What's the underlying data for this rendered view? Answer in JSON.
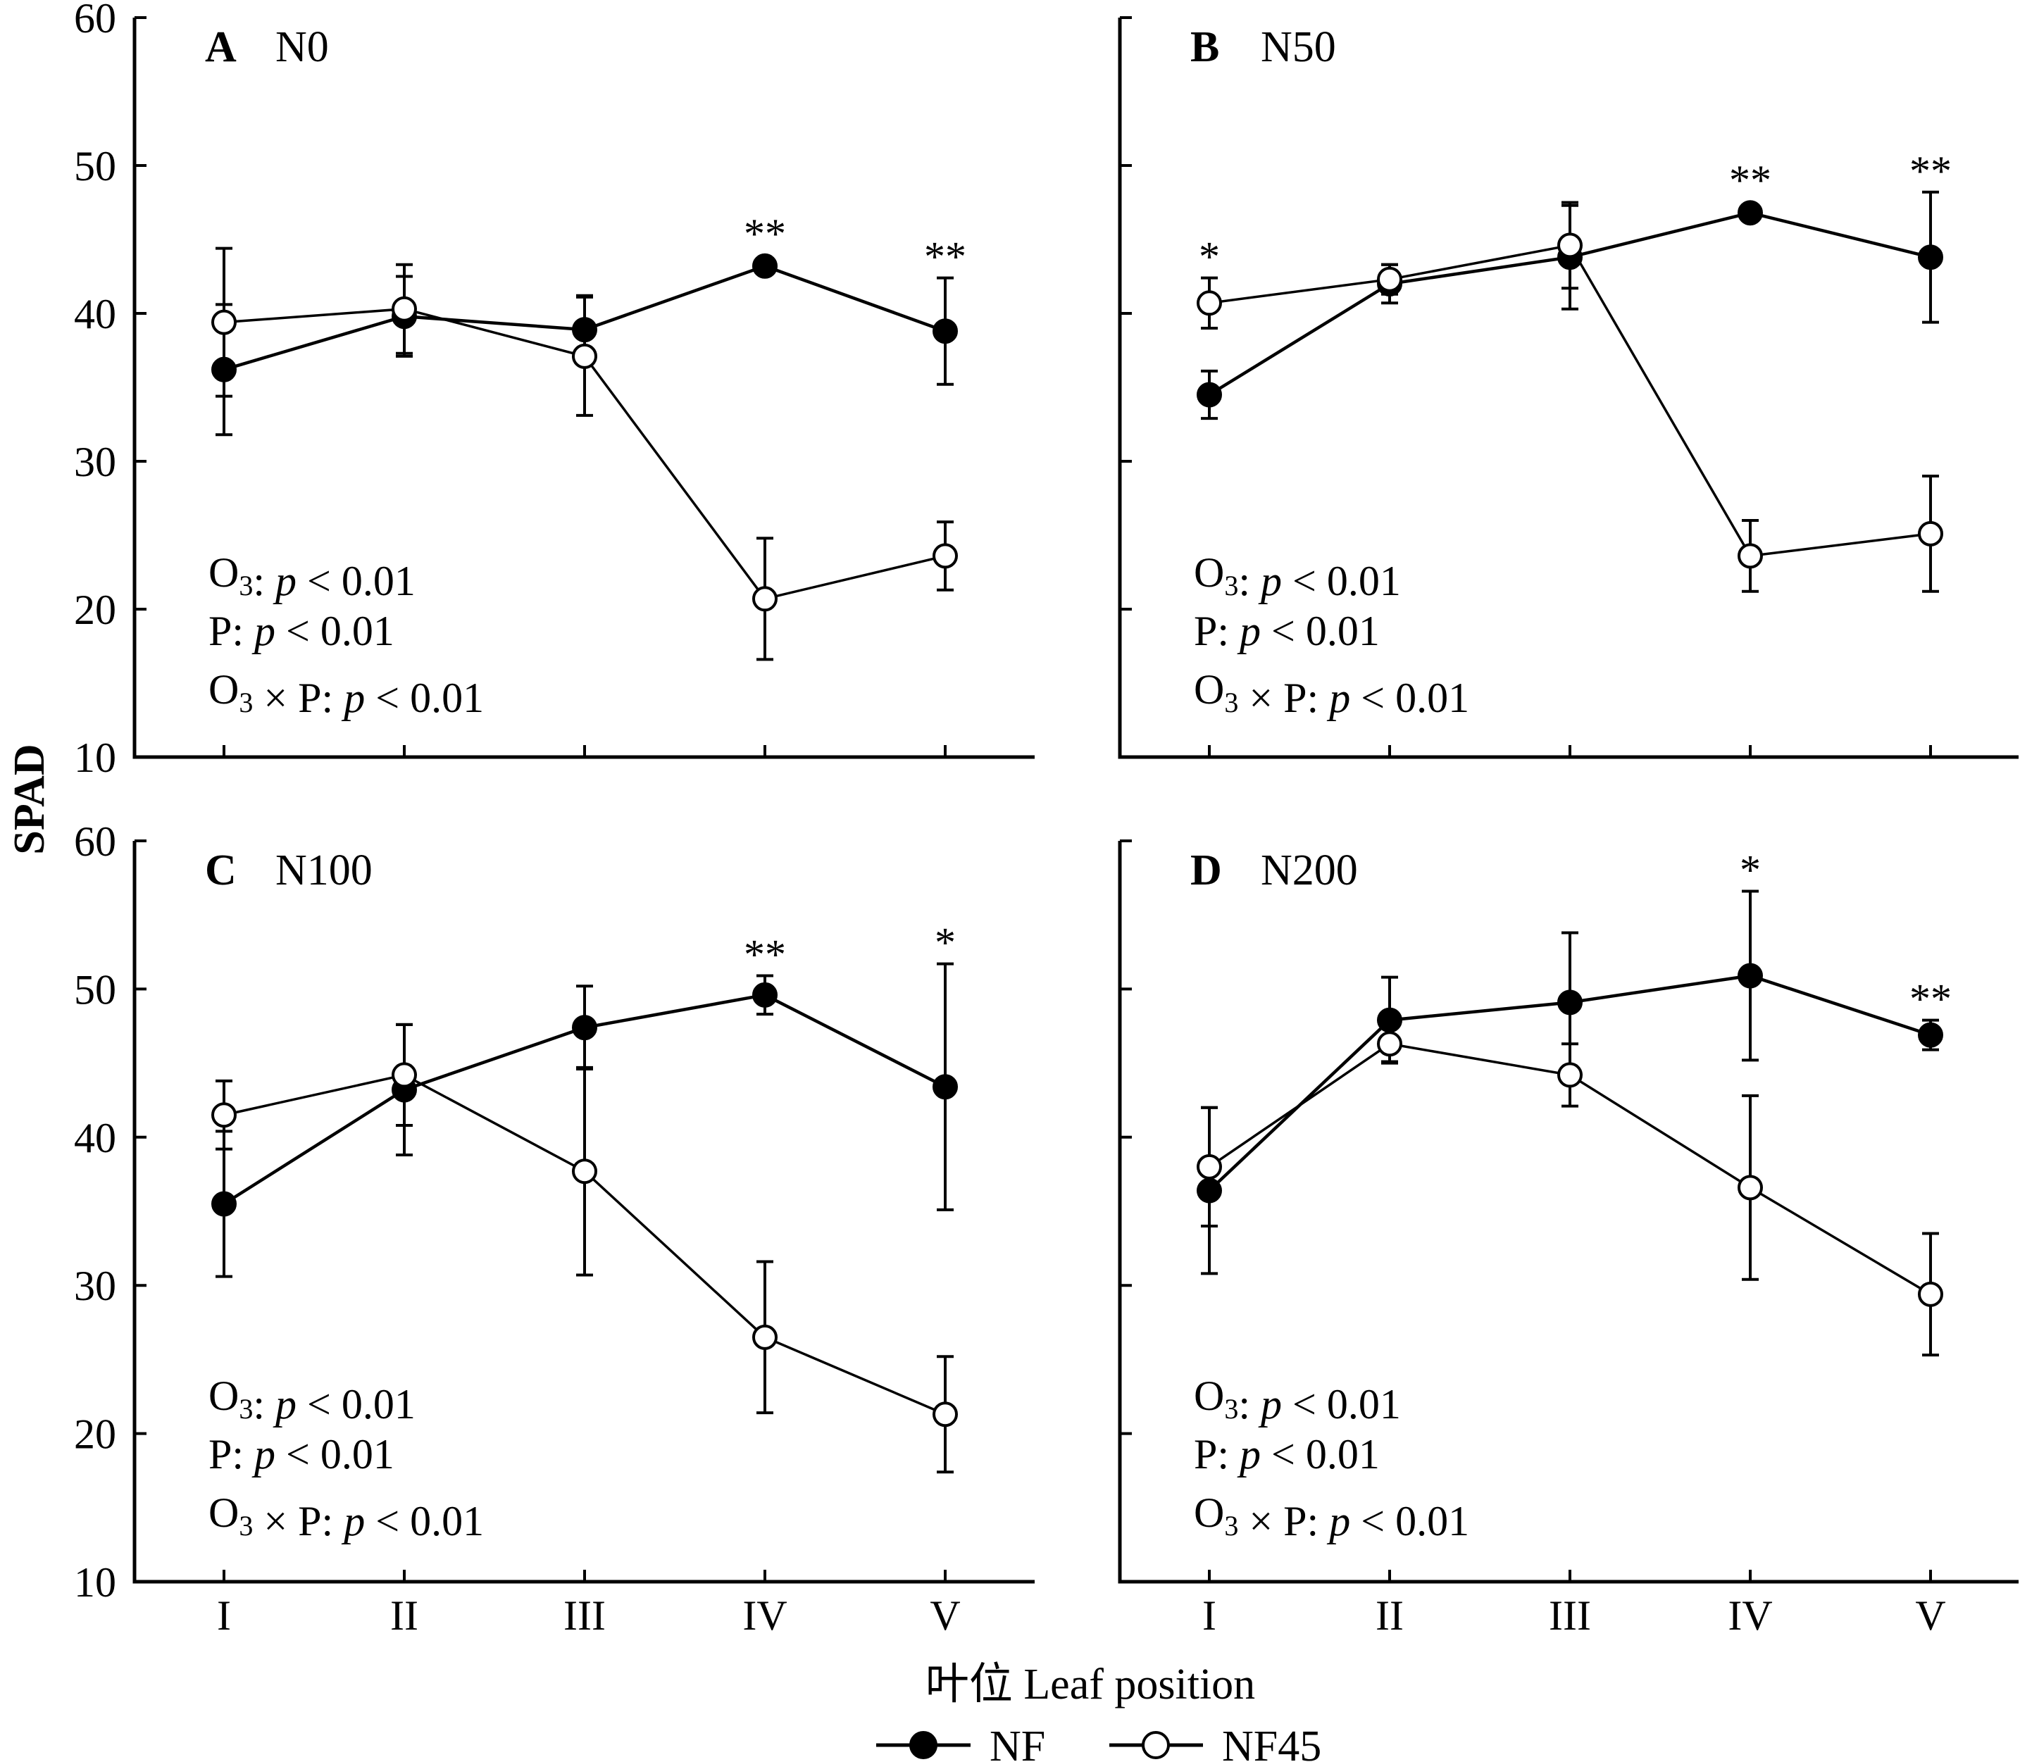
{
  "chart_data": {
    "type": "line",
    "ylabel": "SPAD",
    "xlabel": "叶位 Leaf position",
    "categories": [
      "I",
      "II",
      "III",
      "IV",
      "V"
    ],
    "ylim": [
      10,
      60
    ],
    "yticks": [
      10,
      20,
      30,
      40,
      50,
      60
    ],
    "grid": false,
    "legend": {
      "placement": "bottom-center",
      "entries": [
        {
          "name": "NF",
          "marker": "filled-circle"
        },
        {
          "name": "NF45",
          "marker": "open-circle"
        }
      ]
    },
    "panels": [
      {
        "letter": "A",
        "name": "N0",
        "stats": [
          "O3: p < 0.01",
          "P: p < 0.01",
          "O3 × P: p < 0.01"
        ],
        "series": [
          {
            "name": "NF",
            "values": [
              36.2,
              39.8,
              38.9,
              43.2,
              38.8
            ],
            "errors": [
              4.4,
              2.7,
              2.3,
              0.3,
              3.6
            ]
          },
          {
            "name": "NF45",
            "values": [
              39.4,
              40.3,
              37.1,
              20.7,
              23.6
            ],
            "errors": [
              5.0,
              3.0,
              4.0,
              4.1,
              2.3
            ]
          }
        ],
        "significance": [
          "",
          "",
          "",
          "**",
          "**"
        ]
      },
      {
        "letter": "B",
        "name": "N50",
        "stats": [
          "O3: p < 0.01",
          "P: p < 0.01",
          "O3 × P: p < 0.01"
        ],
        "series": [
          {
            "name": "NF",
            "values": [
              34.5,
              42.0,
              43.8,
              46.8,
              43.8
            ],
            "errors": [
              1.6,
              1.3,
              3.5,
              0.3,
              4.4
            ]
          },
          {
            "name": "NF45",
            "values": [
              40.7,
              42.3,
              44.6,
              23.6,
              25.1
            ],
            "errors": [
              1.7,
              1.0,
              2.9,
              2.4,
              3.9
            ]
          }
        ],
        "significance": [
          "*",
          "",
          "",
          "**",
          "**"
        ]
      },
      {
        "letter": "C",
        "name": "N100",
        "stats": [
          "O3: p < 0.01",
          "P: p < 0.01",
          "O3 × P: p < 0.01"
        ],
        "series": [
          {
            "name": "NF",
            "values": [
              35.5,
              43.2,
              47.4,
              49.6,
              43.4
            ],
            "errors": [
              4.9,
              4.4,
              2.8,
              1.3,
              8.3
            ]
          },
          {
            "name": "NF45",
            "values": [
              41.5,
              44.2,
              37.7,
              26.5,
              21.3
            ],
            "errors": [
              2.3,
              3.4,
              7.0,
              5.1,
              3.9
            ]
          }
        ],
        "significance": [
          "",
          "",
          "",
          "**",
          "*"
        ]
      },
      {
        "letter": "D",
        "name": "N200",
        "stats": [
          "O3: p < 0.01",
          "P: p < 0.01",
          "O3 × P: p < 0.01"
        ],
        "series": [
          {
            "name": "NF",
            "values": [
              36.4,
              47.9,
              49.1,
              50.9,
              46.9
            ],
            "errors": [
              5.6,
              2.9,
              4.7,
              5.7,
              1.0
            ]
          },
          {
            "name": "NF45",
            "values": [
              38.0,
              46.3,
              44.2,
              36.6,
              29.4
            ],
            "errors": [
              4.0,
              1.2,
              2.1,
              6.2,
              4.1
            ]
          }
        ],
        "significance": [
          "",
          "",
          "",
          "*",
          "**"
        ]
      }
    ]
  }
}
